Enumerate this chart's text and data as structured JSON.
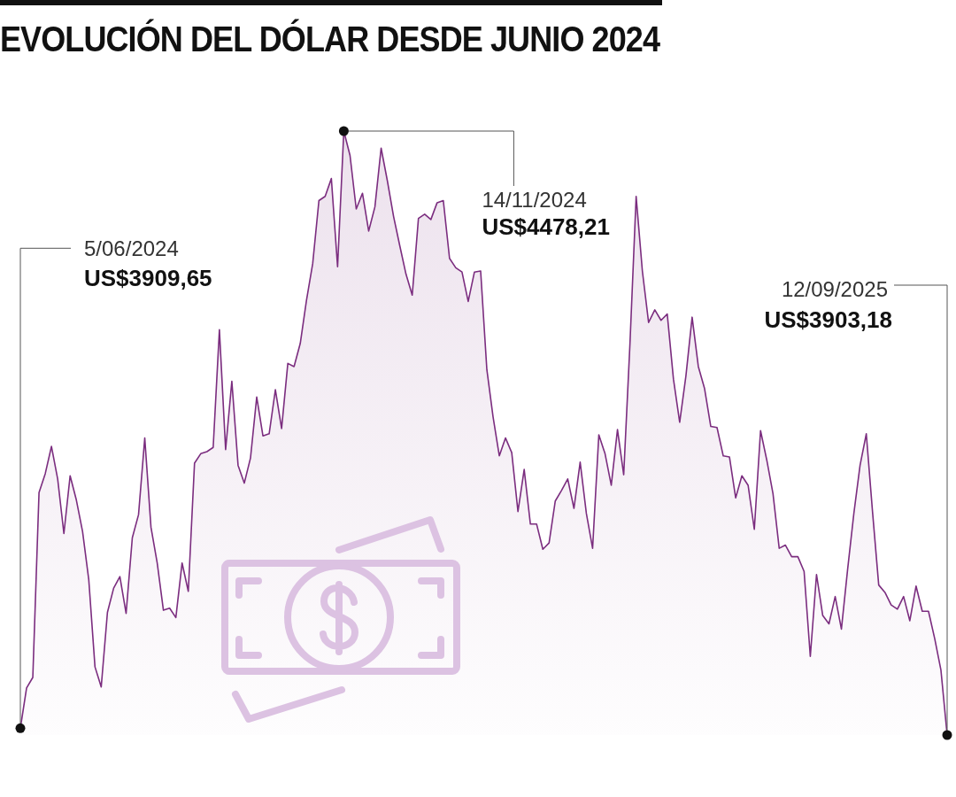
{
  "chart_data": {
    "type": "area",
    "title": "EVOLUCIÓN DEL DÓLAR DESDE JUNIO 2024",
    "categories": [
      null,
      null,
      null,
      null,
      null,
      null,
      null,
      null,
      null,
      null,
      null,
      null,
      null,
      null,
      null,
      null,
      null,
      null,
      null,
      null,
      null,
      null,
      null,
      null,
      null,
      null,
      null,
      null,
      null,
      null,
      null,
      null,
      null,
      null,
      null,
      null,
      null,
      null,
      null,
      null,
      null,
      null,
      null,
      null,
      null,
      null,
      null,
      null,
      null,
      null,
      null,
      null,
      null,
      null,
      null,
      null,
      null,
      null,
      null,
      null,
      null,
      null,
      null,
      null,
      null,
      null,
      null,
      null,
      null,
      null,
      null,
      null,
      null,
      null,
      null,
      null,
      null,
      null,
      null,
      null,
      null,
      null,
      null,
      null,
      null,
      null,
      null,
      null,
      null,
      null,
      null,
      null,
      null,
      null,
      null,
      null,
      null,
      null,
      null,
      null,
      null,
      null,
      null,
      null,
      null,
      null,
      null,
      null,
      null,
      null,
      null,
      null,
      null,
      null,
      null,
      null,
      null,
      null,
      null,
      null,
      null,
      null,
      null,
      null,
      null,
      null,
      null,
      null,
      null,
      null,
      null,
      null,
      null,
      null,
      null,
      null,
      null,
      null,
      null,
      null,
      null,
      null,
      null,
      null,
      null,
      null,
      null,
      null,
      null,
      null
    ],
    "values": [
      3909.65,
      3948,
      3958,
      4134,
      4152,
      4178,
      4147,
      4095,
      4150,
      4127,
      4097,
      4051,
      3968,
      3949,
      4020,
      4043,
      4054,
      4019,
      4091,
      4113,
      4186,
      4101,
      4067,
      4022,
      4024,
      4015,
      4067,
      4040,
      4162,
      4171,
      4173,
      4177,
      4289,
      4175,
      4240,
      4160,
      4143,
      4167,
      4225,
      4188,
      4190,
      4232,
      4195,
      4257,
      4254,
      4276,
      4317,
      4352,
      4412,
      4416,
      4433,
      4349,
      4478.21,
      4455,
      4404,
      4419,
      4383,
      4406,
      4462,
      4431,
      4397,
      4369,
      4342,
      4322,
      4395,
      4399,
      4394,
      4410,
      4412,
      4357,
      4348,
      4344,
      4316,
      4344,
      4345,
      4251,
      4206,
      4169,
      4186,
      4172,
      4116,
      4156,
      4104,
      4104,
      4080,
      4086,
      4126,
      4136,
      4147,
      4119,
      4163,
      4114,
      4081,
      4189,
      4171,
      4141,
      4194,
      4151,
      4275,
      4416,
      4345,
      4296,
      4308,
      4298,
      4304,
      4242,
      4201,
      4245,
      4301,
      4254,
      4233,
      4197,
      4196,
      4169,
      4168,
      4129,
      4150,
      4141,
      4099,
      4193,
      4165,
      4133,
      4081,
      4084,
      4073,
      4073,
      4059,
      3978,
      4056,
      4017,
      4009,
      4035,
      4004,
      4061,
      4114,
      4160,
      4190,
      4116,
      4046,
      4039,
      4027,
      4023,
      4035,
      4012,
      4045,
      4021,
      4021,
      3995,
      3965,
      3903.18
    ],
    "value_labels": [
      "US$3909,65",
      null,
      null,
      null,
      null,
      null,
      null,
      null,
      null,
      null,
      null,
      null,
      null,
      null,
      null,
      null,
      null,
      null,
      null,
      null,
      null,
      null,
      null,
      null,
      null,
      null,
      null,
      null,
      null,
      null,
      null,
      null,
      null,
      null,
      null,
      null,
      null,
      null,
      null,
      null,
      null,
      null,
      null,
      null,
      null,
      null,
      null,
      null,
      null,
      null,
      null,
      null,
      "US$4478,21",
      null,
      null,
      null,
      null,
      null,
      null,
      null,
      null,
      null,
      null,
      null,
      null,
      null,
      null,
      null,
      null,
      null,
      null,
      null,
      null,
      null,
      null,
      null,
      null,
      null,
      null,
      null,
      null,
      null,
      null,
      null,
      null,
      null,
      null,
      null,
      null,
      null,
      null,
      null,
      null,
      null,
      null,
      null,
      null,
      null,
      null,
      null,
      null,
      null,
      null,
      null,
      null,
      null,
      null,
      null,
      null,
      null,
      null,
      null,
      null,
      null,
      null,
      null,
      null,
      null,
      null,
      null,
      null,
      null,
      null,
      null,
      null,
      null,
      null,
      null,
      null,
      null,
      null,
      null,
      null,
      null,
      null,
      null,
      null,
      null,
      null,
      null,
      null,
      null,
      null,
      null,
      null,
      null,
      null,
      null,
      null,
      "US$3903,18"
    ],
    "color": "#7b2d7f",
    "annotations": [
      "5/06/2024",
      "14/11/2024",
      "12/09/2025"
    ]
  }
}
